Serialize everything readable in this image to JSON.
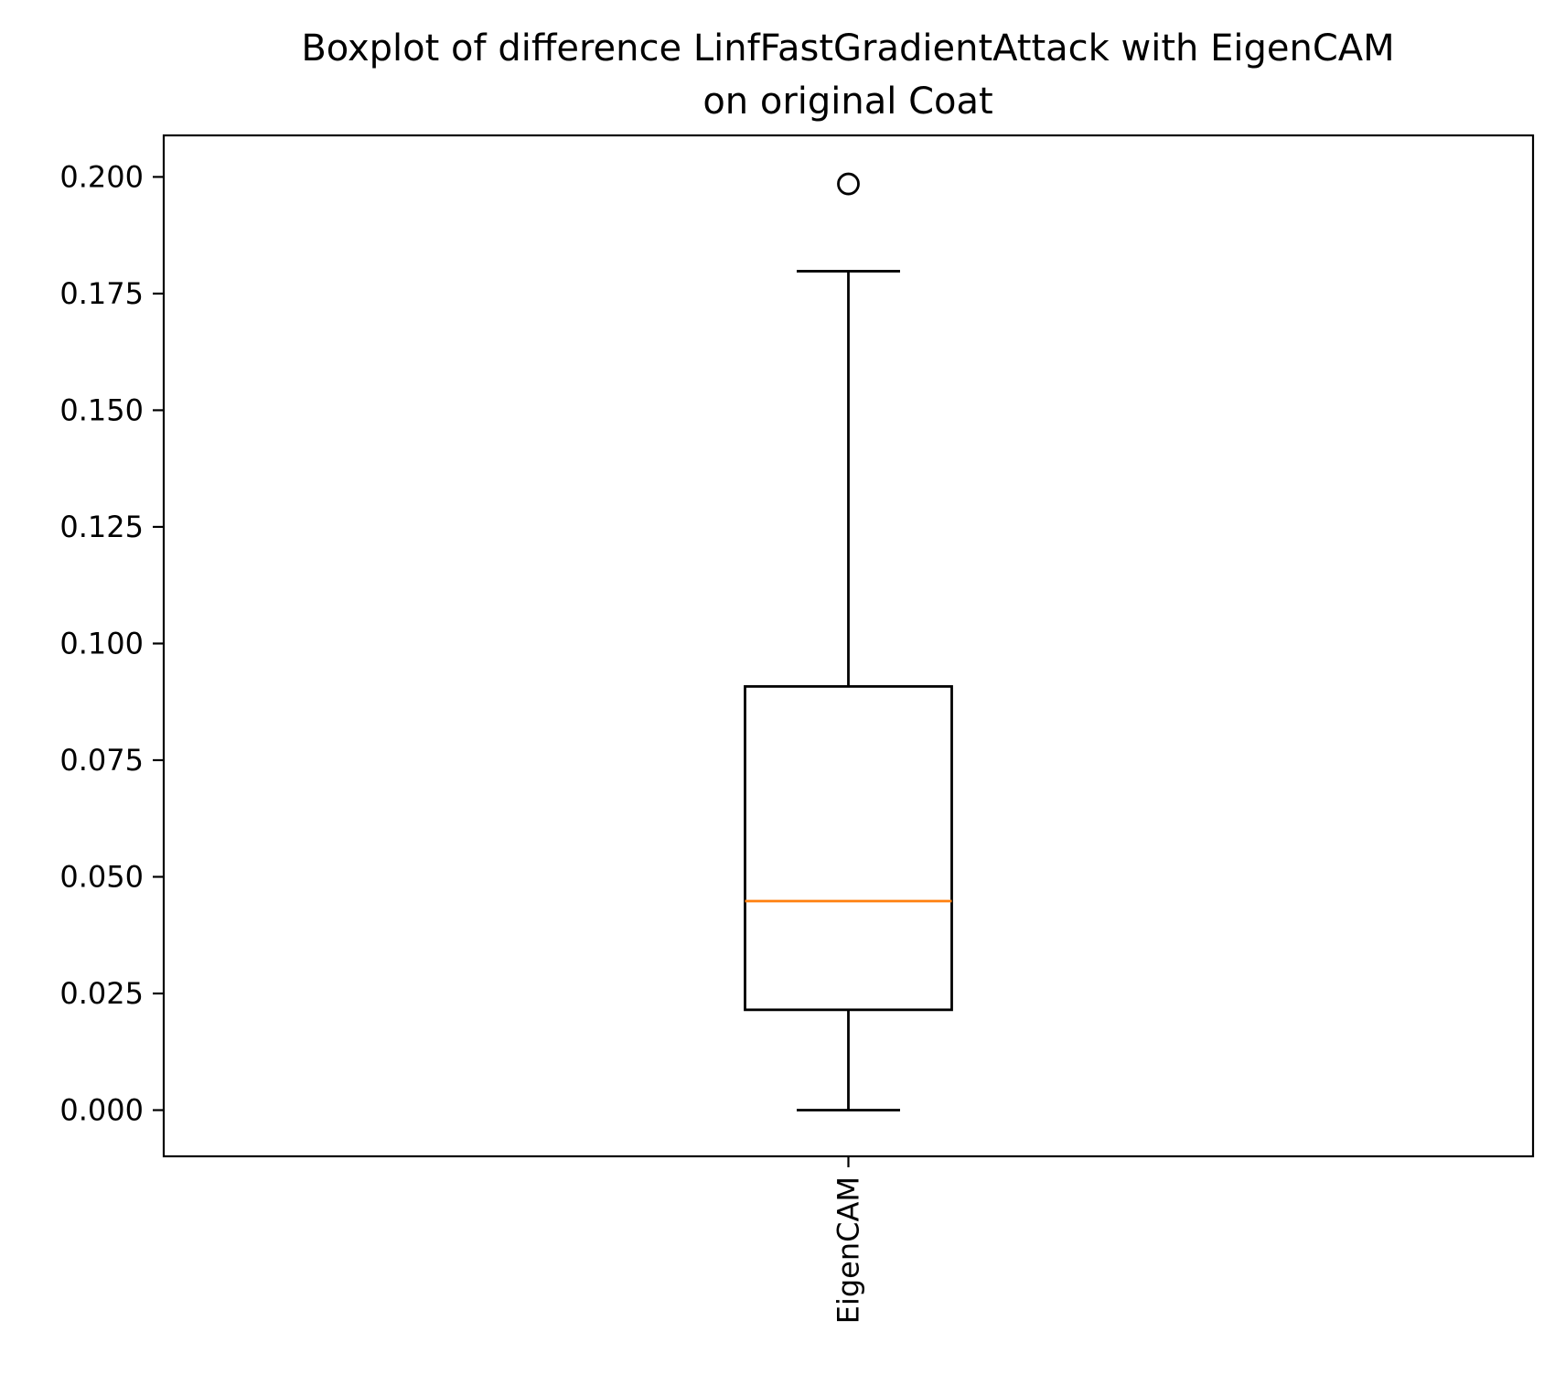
{
  "chart_data": {
    "type": "box",
    "title_lines": [
      "Boxplot of difference LinfFastGradientAttack with EigenCAM",
      "on original Coat"
    ],
    "categories": [
      "EigenCAM"
    ],
    "boxes": [
      {
        "name": "EigenCAM",
        "whisker_low": 0.0,
        "q1": 0.0215,
        "median": 0.0448,
        "q3": 0.0908,
        "whisker_high": 0.1798,
        "outliers": [
          0.1985
        ]
      }
    ],
    "y_ticks": [
      0.0,
      0.025,
      0.05,
      0.075,
      0.1,
      0.125,
      0.15,
      0.175,
      0.2
    ],
    "y_tick_labels": [
      "0.000",
      "0.025",
      "0.050",
      "0.075",
      "0.100",
      "0.125",
      "0.150",
      "0.175",
      "0.200"
    ],
    "ylim": [
      -0.0099,
      0.2089
    ],
    "x_tick_label_rotation": "vertical",
    "grid": false,
    "colors": {
      "box": "#000000",
      "median": "#ff7f0e",
      "background": "#ffffff"
    }
  }
}
